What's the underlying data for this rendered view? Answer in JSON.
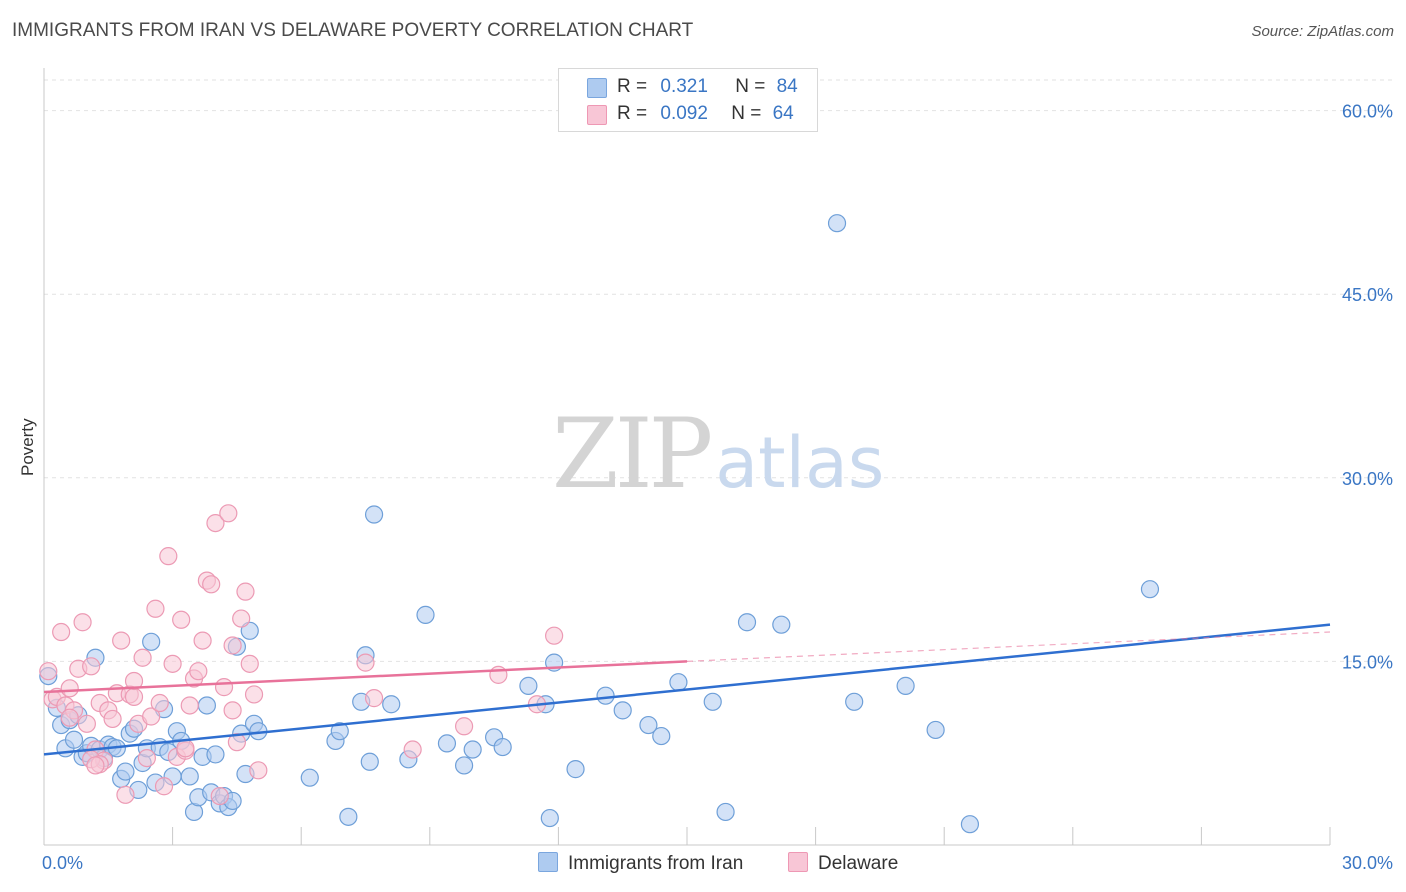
{
  "header": {
    "title": "IMMIGRANTS FROM IRAN VS DELAWARE POVERTY CORRELATION CHART",
    "source": "Source: ZipAtlas.com"
  },
  "legend": {
    "rows": [
      {
        "r_label": "R =",
        "r_value": "0.321",
        "n_label": "N =",
        "n_value": "84",
        "color": "#aecbf0",
        "border": "#7aa6de"
      },
      {
        "r_label": "R =",
        "r_value": "0.092",
        "n_label": "N =",
        "n_value": "64",
        "color": "#f8c6d6",
        "border": "#ee98b4"
      }
    ]
  },
  "watermark": {
    "zip": "ZIP",
    "atlas": "atlas"
  },
  "chart_data": {
    "type": "scatter",
    "title": "IMMIGRANTS FROM IRAN VS DELAWARE POVERTY CORRELATION CHART",
    "xlabel": "",
    "ylabel": "Poverty",
    "xlim": [
      0,
      30
    ],
    "ylim": [
      0,
      62.5
    ],
    "x_tick_labels": [
      {
        "value": 0,
        "label": "0.0%"
      },
      {
        "value": 30,
        "label": "30.0%"
      }
    ],
    "y_tick_labels": [
      {
        "value": 15,
        "label": "15.0%"
      },
      {
        "value": 30,
        "label": "30.0%"
      },
      {
        "value": 45,
        "label": "45.0%"
      },
      {
        "value": 60,
        "label": "60.0%"
      }
    ],
    "grid": true,
    "legend_position": "top-center",
    "series": [
      {
        "name": "Immigrants from Iran",
        "color": "#aecbf0",
        "stroke": "#6e9fd8",
        "line_color": "#2f6fd0",
        "trend": {
          "x0": 0,
          "y0": 7.4,
          "x1": 30,
          "y1": 18.0,
          "dashed_from": null
        },
        "points": [
          [
            0.1,
            13.8
          ],
          [
            0.3,
            11.2
          ],
          [
            0.4,
            9.8
          ],
          [
            0.5,
            7.9
          ],
          [
            0.6,
            10.2
          ],
          [
            0.7,
            8.6
          ],
          [
            0.8,
            10.6
          ],
          [
            0.9,
            7.2
          ],
          [
            1.0,
            7.5
          ],
          [
            1.1,
            8.1
          ],
          [
            1.2,
            15.3
          ],
          [
            1.3,
            7.8
          ],
          [
            1.4,
            7.1
          ],
          [
            1.5,
            8.2
          ],
          [
            1.6,
            8.0
          ],
          [
            1.7,
            7.9
          ],
          [
            1.8,
            5.4
          ],
          [
            1.9,
            6.0
          ],
          [
            2.0,
            9.1
          ],
          [
            2.1,
            9.5
          ],
          [
            2.2,
            4.5
          ],
          [
            2.3,
            6.7
          ],
          [
            2.4,
            7.9
          ],
          [
            2.5,
            16.6
          ],
          [
            2.6,
            5.1
          ],
          [
            2.7,
            8.0
          ],
          [
            2.8,
            11.1
          ],
          [
            2.9,
            7.6
          ],
          [
            3.0,
            5.6
          ],
          [
            3.1,
            9.3
          ],
          [
            3.2,
            8.5
          ],
          [
            3.4,
            5.6
          ],
          [
            3.5,
            2.7
          ],
          [
            3.6,
            3.9
          ],
          [
            3.7,
            7.2
          ],
          [
            3.8,
            11.4
          ],
          [
            3.9,
            4.3
          ],
          [
            4.0,
            7.4
          ],
          [
            4.1,
            3.4
          ],
          [
            4.2,
            4.0
          ],
          [
            4.3,
            3.1
          ],
          [
            4.4,
            3.6
          ],
          [
            4.5,
            16.2
          ],
          [
            4.6,
            9.1
          ],
          [
            4.7,
            5.8
          ],
          [
            4.8,
            17.5
          ],
          [
            4.9,
            9.9
          ],
          [
            5.0,
            9.3
          ],
          [
            6.2,
            5.5
          ],
          [
            6.8,
            8.5
          ],
          [
            6.9,
            9.3
          ],
          [
            7.1,
            2.3
          ],
          [
            7.4,
            11.7
          ],
          [
            7.5,
            15.5
          ],
          [
            7.6,
            6.8
          ],
          [
            8.1,
            11.5
          ],
          [
            8.5,
            7.0
          ],
          [
            8.9,
            18.8
          ],
          [
            9.4,
            8.3
          ],
          [
            9.8,
            6.5
          ],
          [
            10.0,
            7.8
          ],
          [
            10.5,
            8.8
          ],
          [
            10.7,
            8.0
          ],
          [
            11.3,
            13.0
          ],
          [
            11.7,
            11.5
          ],
          [
            11.9,
            14.9
          ],
          [
            12.4,
            6.2
          ],
          [
            13.1,
            12.2
          ],
          [
            13.5,
            11.0
          ],
          [
            14.1,
            9.8
          ],
          [
            14.4,
            8.9
          ],
          [
            14.8,
            13.3
          ],
          [
            15.6,
            11.7
          ],
          [
            15.9,
            2.7
          ],
          [
            16.4,
            18.2
          ],
          [
            17.2,
            18.0
          ],
          [
            18.5,
            50.8
          ],
          [
            18.9,
            11.7
          ],
          [
            20.1,
            13.0
          ],
          [
            20.8,
            9.4
          ],
          [
            21.6,
            1.7
          ],
          [
            25.8,
            20.9
          ],
          [
            11.8,
            2.2
          ],
          [
            7.7,
            27.0
          ]
        ]
      },
      {
        "name": "Delaware",
        "color": "#f8c6d6",
        "stroke": "#ec9ab4",
        "line_color": "#e8729a",
        "trend": {
          "x0": 0,
          "y0": 12.5,
          "x1": 15.0,
          "y1": 15.0,
          "dashed_from": 15.0,
          "x_end": 30,
          "y_end": 17.4
        },
        "points": [
          [
            0.1,
            14.2
          ],
          [
            0.2,
            11.9
          ],
          [
            0.3,
            12.1
          ],
          [
            0.4,
            17.4
          ],
          [
            0.5,
            11.4
          ],
          [
            0.6,
            12.8
          ],
          [
            0.7,
            11.0
          ],
          [
            0.8,
            14.4
          ],
          [
            0.9,
            18.2
          ],
          [
            1.0,
            9.9
          ],
          [
            1.1,
            14.6
          ],
          [
            1.2,
            7.8
          ],
          [
            1.3,
            11.6
          ],
          [
            1.4,
            6.9
          ],
          [
            1.5,
            11.0
          ],
          [
            1.6,
            10.3
          ],
          [
            1.7,
            12.4
          ],
          [
            1.8,
            16.7
          ],
          [
            1.9,
            4.1
          ],
          [
            2.0,
            12.3
          ],
          [
            2.1,
            12.1
          ],
          [
            2.2,
            9.9
          ],
          [
            2.3,
            15.3
          ],
          [
            2.4,
            7.1
          ],
          [
            2.5,
            10.5
          ],
          [
            2.6,
            19.3
          ],
          [
            2.7,
            11.6
          ],
          [
            2.8,
            4.8
          ],
          [
            2.9,
            23.6
          ],
          [
            3.0,
            14.8
          ],
          [
            3.1,
            7.2
          ],
          [
            3.2,
            18.4
          ],
          [
            3.3,
            7.7
          ],
          [
            3.4,
            11.4
          ],
          [
            3.5,
            13.6
          ],
          [
            3.6,
            14.2
          ],
          [
            3.7,
            16.7
          ],
          [
            3.8,
            21.6
          ],
          [
            3.9,
            21.3
          ],
          [
            4.0,
            26.3
          ],
          [
            4.1,
            4.0
          ],
          [
            4.2,
            12.9
          ],
          [
            4.3,
            27.1
          ],
          [
            4.4,
            16.3
          ],
          [
            4.5,
            8.4
          ],
          [
            4.6,
            18.5
          ],
          [
            4.7,
            20.7
          ],
          [
            4.8,
            14.8
          ],
          [
            4.9,
            12.3
          ],
          [
            5.0,
            6.1
          ],
          [
            1.1,
            7.0
          ],
          [
            1.3,
            6.6
          ],
          [
            2.1,
            13.4
          ],
          [
            3.3,
            7.9
          ],
          [
            4.4,
            11.0
          ],
          [
            7.5,
            14.9
          ],
          [
            7.7,
            12.0
          ],
          [
            8.6,
            7.8
          ],
          [
            9.8,
            9.7
          ],
          [
            10.6,
            13.9
          ],
          [
            11.5,
            11.5
          ],
          [
            11.9,
            17.1
          ],
          [
            0.6,
            10.4
          ],
          [
            1.2,
            6.5
          ]
        ]
      }
    ]
  }
}
